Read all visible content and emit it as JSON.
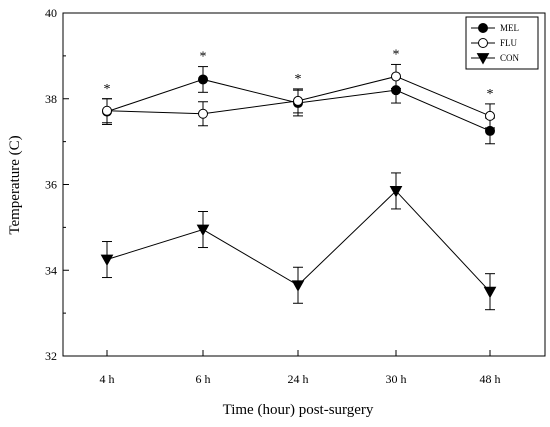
{
  "chart_data": {
    "type": "line",
    "categories": [
      "4 h",
      "6 h",
      "24 h",
      "30 h",
      "48 h"
    ],
    "xlabel": "Time (hour) post-surgery",
    "ylabel": "Temperature (C)",
    "ylim": [
      32,
      40
    ],
    "yticks": [
      32,
      34,
      36,
      38,
      40
    ],
    "legend_position": "top-right",
    "series": [
      {
        "name": "MEL",
        "marker": "filled-circle",
        "values": [
          37.7,
          38.45,
          37.9,
          38.2,
          37.25
        ],
        "errors": [
          0.3,
          0.3,
          0.3,
          0.3,
          0.3
        ]
      },
      {
        "name": "FLU",
        "marker": "open-circle",
        "values": [
          37.72,
          37.65,
          37.95,
          38.52,
          37.6
        ],
        "errors": [
          0.28,
          0.28,
          0.28,
          0.28,
          0.28
        ]
      },
      {
        "name": "CON",
        "marker": "filled-triangle-down",
        "values": [
          34.25,
          34.95,
          33.65,
          35.85,
          33.5
        ],
        "errors": [
          0.42,
          0.42,
          0.42,
          0.42,
          0.42
        ]
      }
    ],
    "annotations": [
      "*",
      "*",
      "*",
      "*",
      "*"
    ],
    "grid": false
  }
}
